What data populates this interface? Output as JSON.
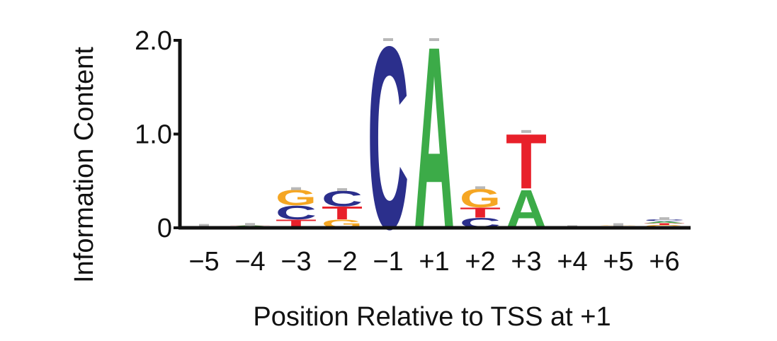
{
  "chart_data": {
    "type": "sequence-logo",
    "title": "",
    "xlabel": "Position Relative to TSS at +1",
    "ylabel": "Information Content",
    "ylim": [
      0,
      2.0
    ],
    "y_ticks": [
      "0",
      "1.0",
      "2.0"
    ],
    "y_tick_values": [
      0,
      1.0,
      2.0
    ],
    "categories": [
      "−5",
      "−4",
      "−3",
      "−2",
      "−1",
      "+1",
      "+2",
      "+3",
      "+4",
      "+5",
      "+6"
    ],
    "colors": {
      "A": "#3cab48",
      "C": "#2b2f8c",
      "G": "#f5a623",
      "T": "#e8202a",
      "error_bar": "#b8b8b8",
      "axis": "#111111"
    },
    "stacks": [
      {
        "position": "−5",
        "letters": [
          {
            "base": "C",
            "height": 0.005
          },
          {
            "base": "A",
            "height": 0.005
          },
          {
            "base": "G",
            "height": 0.004
          },
          {
            "base": "T",
            "height": 0.004
          }
        ]
      },
      {
        "position": "−4",
        "letters": [
          {
            "base": "C",
            "height": 0.008
          },
          {
            "base": "G",
            "height": 0.007
          },
          {
            "base": "A",
            "height": 0.007
          },
          {
            "base": "T",
            "height": 0.006
          }
        ]
      },
      {
        "position": "−3",
        "letters": [
          {
            "base": "T",
            "height": 0.09
          },
          {
            "base": "C",
            "height": 0.15
          },
          {
            "base": "G",
            "height": 0.17
          }
        ]
      },
      {
        "position": "−2",
        "letters": [
          {
            "base": "G",
            "height": 0.09
          },
          {
            "base": "T",
            "height": 0.14
          },
          {
            "base": "C",
            "height": 0.17
          }
        ]
      },
      {
        "position": "−1",
        "letters": [
          {
            "base": "C",
            "height": 2.0
          }
        ]
      },
      {
        "position": "+1",
        "letters": [
          {
            "base": "A",
            "height": 2.0
          }
        ]
      },
      {
        "position": "+2",
        "letters": [
          {
            "base": "C",
            "height": 0.11
          },
          {
            "base": "T",
            "height": 0.11
          },
          {
            "base": "G",
            "height": 0.2
          }
        ]
      },
      {
        "position": "+3",
        "letters": [
          {
            "base": "A",
            "height": 0.42
          },
          {
            "base": "T",
            "height": 0.6
          }
        ]
      },
      {
        "position": "+4",
        "letters": [
          {
            "base": "G",
            "height": 0.002
          },
          {
            "base": "T",
            "height": 0.002
          }
        ]
      },
      {
        "position": "+5",
        "letters": [
          {
            "base": "C",
            "height": 0.008
          },
          {
            "base": "A",
            "height": 0.007
          },
          {
            "base": "T",
            "height": 0.006
          },
          {
            "base": "G",
            "height": 0.005
          }
        ]
      },
      {
        "position": "+6",
        "letters": [
          {
            "base": "G",
            "height": 0.03
          },
          {
            "base": "T",
            "height": 0.02
          },
          {
            "base": "A",
            "height": 0.02
          },
          {
            "base": "C",
            "height": 0.02
          }
        ]
      }
    ]
  }
}
